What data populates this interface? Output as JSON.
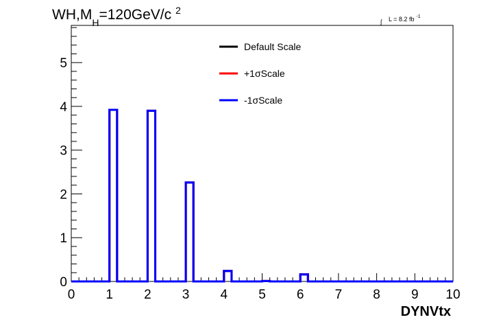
{
  "chart_data": {
    "type": "histogram",
    "title_parts": {
      "main": "WH,M",
      "sub": "H",
      "value": "=120GeV/c",
      "sup": "2"
    },
    "lumi_parts": {
      "integral": "∫",
      "text": "L = 8.2 fb",
      "sup": "-1"
    },
    "xlabel": "DYNVtx",
    "ylabel": "",
    "xlim": [
      0,
      10
    ],
    "ylim": [
      0,
      5.85
    ],
    "x_ticks": [
      "0",
      "1",
      "2",
      "3",
      "4",
      "5",
      "6",
      "7",
      "8",
      "9",
      "10"
    ],
    "y_ticks": [
      "0",
      "1",
      "2",
      "3",
      "4",
      "5"
    ],
    "bin_edges": [
      0,
      1,
      1.2,
      2,
      2.2,
      3,
      3.2,
      4,
      4.2,
      5,
      5.2,
      6,
      6.2,
      7,
      10
    ],
    "series": [
      {
        "name": "Default Scale",
        "color": "#000000",
        "values": [
          0,
          3.92,
          0,
          3.9,
          0,
          2.26,
          0,
          0.24,
          0,
          0.01,
          0,
          0.16,
          0,
          0
        ]
      },
      {
        "name": "+1σScale",
        "color": "#ff0000",
        "values": [
          0,
          3.92,
          0,
          3.9,
          0,
          2.26,
          0,
          0.24,
          0,
          0.01,
          0,
          0.16,
          0,
          0
        ]
      },
      {
        "name": "-1σScale",
        "color": "#0000ff",
        "values": [
          0,
          3.92,
          0,
          3.9,
          0,
          2.26,
          0,
          0.24,
          0,
          0.01,
          0,
          0.16,
          0,
          0
        ]
      }
    ],
    "legend_position": "top-center",
    "grid": false
  }
}
